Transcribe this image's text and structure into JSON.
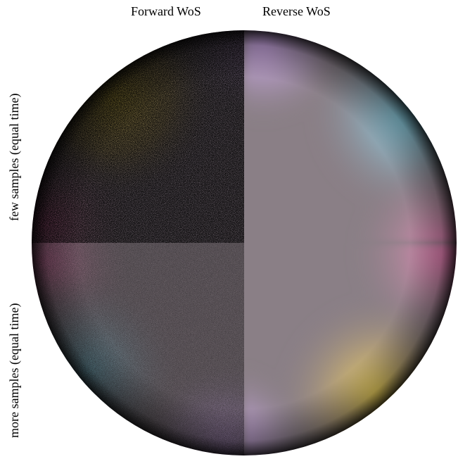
{
  "column_labels": {
    "left": "Forward WoS",
    "right": "Reverse WoS"
  },
  "row_labels": {
    "top": "few samples (equal time)",
    "bottom": "more samples (equal time)"
  },
  "colors": {
    "boundary_yellow": "#ffe15a",
    "boundary_pink": "#ff7fc0",
    "boundary_cyan": "#8fe8ff",
    "boundary_lavender": "#d7aef5",
    "interior_gray": "#8a7f86",
    "dark": "#000000"
  }
}
